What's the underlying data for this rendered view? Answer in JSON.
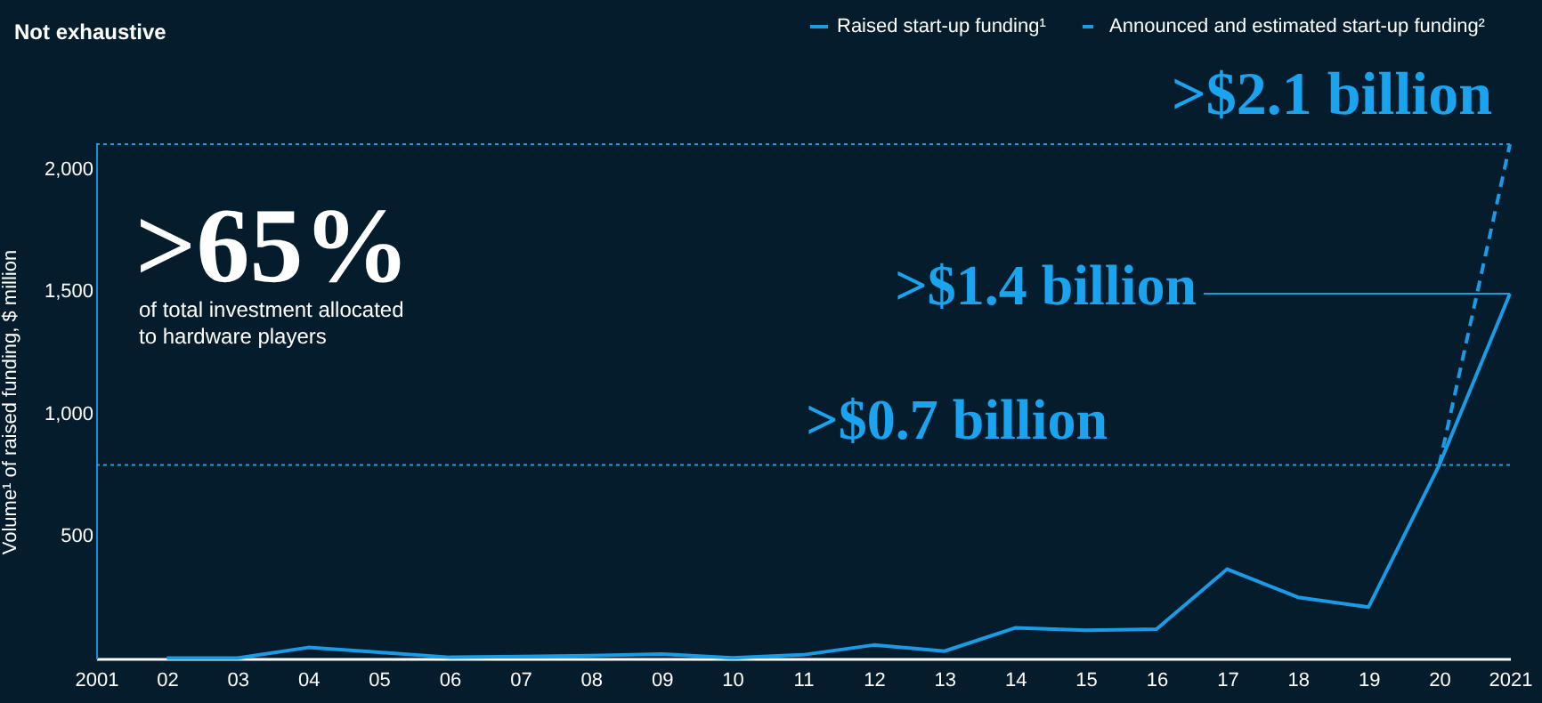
{
  "chart_data": {
    "type": "line",
    "title": "Not exhaustive",
    "ylabel": "Volume¹ of raised funding, $ million",
    "categories": [
      "2001",
      "02",
      "03",
      "04",
      "05",
      "06",
      "07",
      "08",
      "09",
      "10",
      "11",
      "12",
      "13",
      "14",
      "15",
      "16",
      "17",
      "18",
      "19",
      "20",
      "2021"
    ],
    "series": [
      {
        "name": "Raised start-up funding¹",
        "color": "#1a9be6",
        "line_style": "solid",
        "values": [
          null,
          2,
          2,
          45,
          25,
          5,
          8,
          12,
          18,
          3,
          15,
          55,
          30,
          125,
          115,
          120,
          365,
          250,
          210,
          790,
          1490
        ]
      },
      {
        "name": "Announced and estimated start-up funding²",
        "color": "#1a9be6",
        "line_style": "dashed",
        "values": [
          null,
          null,
          null,
          null,
          null,
          null,
          null,
          null,
          null,
          null,
          null,
          null,
          null,
          null,
          null,
          null,
          null,
          null,
          null,
          790,
          2100
        ]
      }
    ],
    "ylim": [
      0,
      2100
    ],
    "yticks": [
      500,
      {
        "value": 1000,
        "label": "1,000"
      },
      {
        "value": 1500,
        "label": "1,500"
      },
      {
        "value": 2000,
        "label": "2,000"
      }
    ],
    "grid": false,
    "legend": "top right",
    "ref_lines": [
      {
        "axis": "y",
        "value": 790,
        "label": ">$0.7 billion",
        "color": "#1a9be6",
        "line_style": "dotted"
      },
      {
        "axis": "y",
        "value": 2100,
        "label": ">$2.1 billion",
        "color": "#1a9be6",
        "line_style": "dotted"
      }
    ],
    "annotations": [
      ">65%",
      "of total investment allocated",
      "to hardware players",
      {
        "text": ">$1.4 billion",
        "x": "2021",
        "y": 1490
      }
    ]
  }
}
